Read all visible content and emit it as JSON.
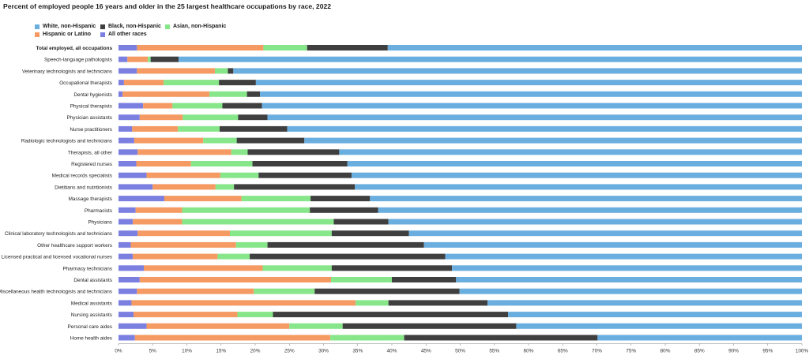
{
  "chart_data": {
    "type": "bar",
    "orientation": "horizontal",
    "stacked": true,
    "title": "Percent of employed people 16 years and older in the 25 largest healthcare occupations by race, 2022",
    "xlim": [
      0,
      100
    ],
    "x_ticks": [
      "0%",
      "5%",
      "10%",
      "15%",
      "20%",
      "25%",
      "30%",
      "35%",
      "40%",
      "45%",
      "50%",
      "55%",
      "60%",
      "65%",
      "70%",
      "75%",
      "80%",
      "85%",
      "90%",
      "95%",
      "100%"
    ],
    "legend_position": "top-left",
    "grid": false,
    "categories": [
      "Total employed, all occupations",
      "Speech-language pathologists",
      "Veterinary technologists and technicians",
      "Occupational therapists",
      "Dental hygienists",
      "Physical therapists",
      "Physician assistants",
      "Nurse practitioners",
      "Radiologic technologists and technicians",
      "Therapists, all other",
      "Registered nurses",
      "Medical records specialists",
      "Dietitians and nutritionists",
      "Massage therapists",
      "Pharmacists",
      "Physicians",
      "Clinical laboratory technologists and technicians",
      "Other healthcare support workers",
      "Licensed practical and licensed vocational nurses",
      "Pharmacy technicians",
      "Dental assistants",
      "Miscellaneous health technologists and technicians",
      "Medical assistants",
      "Nursing assistants",
      "Personal care aides",
      "Home health aides"
    ],
    "series": [
      {
        "name": "All other races",
        "color": "#7b7fe0",
        "values": [
          2.7,
          1.3,
          2.7,
          0.8,
          0.6,
          3.6,
          3.1,
          2.0,
          2.3,
          2.8,
          2.6,
          4.1,
          5.0,
          6.7,
          2.5,
          2.1,
          2.8,
          1.8,
          2.1,
          3.7,
          3.1,
          2.7,
          1.9,
          2.2,
          4.1,
          2.4
        ]
      },
      {
        "name": "Hispanic or Latino",
        "color": "#f59a62",
        "values": [
          18.5,
          3.0,
          11.4,
          5.8,
          12.7,
          4.3,
          6.3,
          6.7,
          10.1,
          13.7,
          8.0,
          10.8,
          9.2,
          11.3,
          6.8,
          7.2,
          13.5,
          15.4,
          12.4,
          17.4,
          28.0,
          17.1,
          32.8,
          15.2,
          20.9,
          28.6
        ]
      },
      {
        "name": "Asian, non-Hispanic",
        "color": "#88e68a",
        "values": [
          6.4,
          0.4,
          1.9,
          8.1,
          5.5,
          7.3,
          8.1,
          6.1,
          4.9,
          2.4,
          9.0,
          5.6,
          2.7,
          10.1,
          18.7,
          22.2,
          14.9,
          4.6,
          4.7,
          10.1,
          8.9,
          8.9,
          4.8,
          5.2,
          7.8,
          10.8
        ]
      },
      {
        "name": "Black, non-Hispanic",
        "color": "#3f3f3f",
        "values": [
          11.8,
          4.1,
          0.8,
          5.4,
          1.9,
          5.8,
          4.3,
          9.9,
          9.9,
          13.4,
          13.9,
          13.6,
          17.7,
          8.7,
          10.0,
          8.0,
          11.3,
          22.9,
          28.6,
          17.6,
          9.4,
          21.2,
          14.5,
          34.4,
          25.4,
          28.3
        ]
      },
      {
        "name": "White, non-Hispanic",
        "color": "#6aaee0",
        "values": [
          60.6,
          91.2,
          83.2,
          79.9,
          79.3,
          79.0,
          78.2,
          75.3,
          72.8,
          67.7,
          66.5,
          65.9,
          65.4,
          63.2,
          62.0,
          60.5,
          57.5,
          55.3,
          52.2,
          51.2,
          50.6,
          50.1,
          46.0,
          43.0,
          41.8,
          29.9
        ]
      }
    ]
  },
  "legend": [
    {
      "label": "White, non-Hispanic",
      "color": "#6aaee0"
    },
    {
      "label": "Hispanic or Latino",
      "color": "#f59a62"
    },
    {
      "label": "Black, non-Hispanic",
      "color": "#3f3f3f"
    },
    {
      "label": "All other races",
      "color": "#7b7fe0"
    },
    {
      "label": "Asian, non-Hispanic",
      "color": "#88e68a"
    }
  ]
}
